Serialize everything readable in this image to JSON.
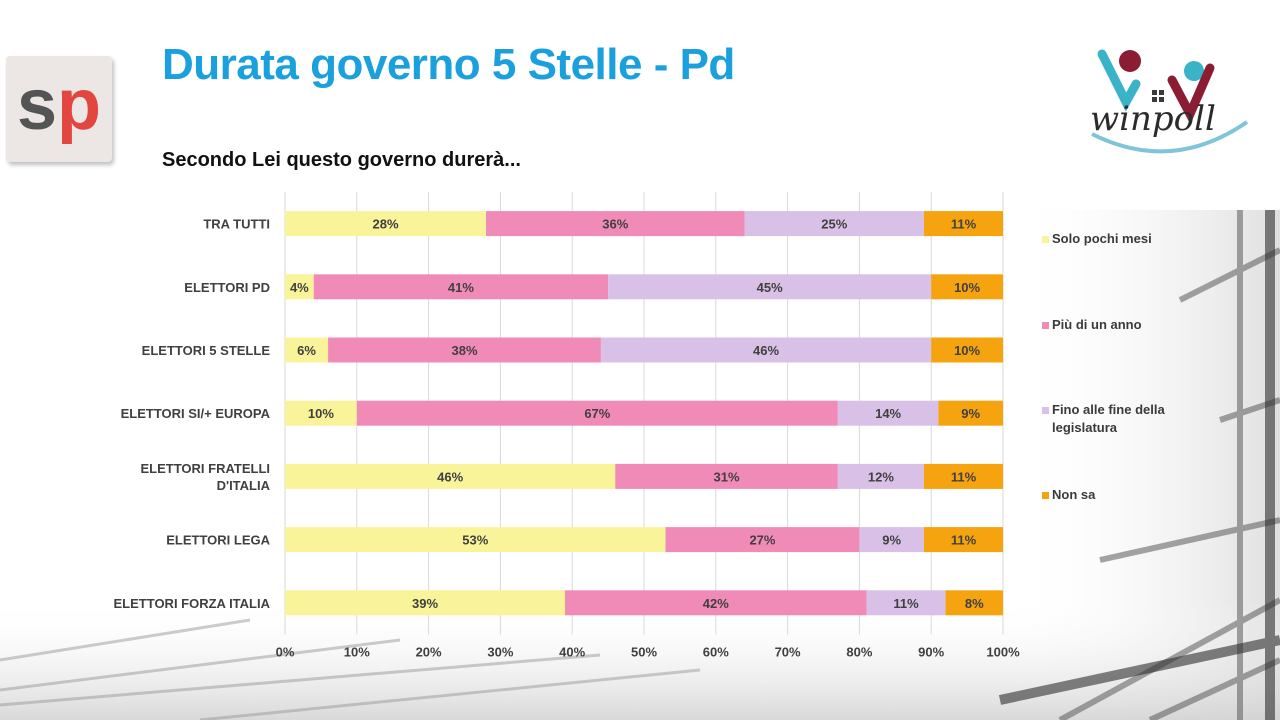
{
  "header": {
    "title": "Durata governo 5 Stelle - Pd",
    "subtitle": "Secondo Lei questo governo durerà..."
  },
  "logos": {
    "left_letters": [
      "s",
      "p"
    ],
    "right_name": "winpoll"
  },
  "colors": {
    "title": "#1aa0dd",
    "series": [
      "#f9f39a",
      "#f08bb8",
      "#d9c0e6",
      "#f5a30f"
    ],
    "logo_s": "#545454",
    "logo_p": "#e2463e"
  },
  "chart_data": {
    "type": "bar",
    "orientation": "horizontal",
    "stacked": "percent",
    "categories": [
      "TRA TUTTI",
      "ELETTORI PD",
      "ELETTORI 5 STELLE",
      "ELETTORI SI/+ EUROPA",
      "ELETTORI FRATELLI D'ITALIA",
      "ELETTORI LEGA",
      "ELETTORI FORZA ITALIA"
    ],
    "category_lines": [
      [
        "TRA TUTTI"
      ],
      [
        "ELETTORI PD"
      ],
      [
        "ELETTORI 5 STELLE"
      ],
      [
        "ELETTORI SI/+ EUROPA"
      ],
      [
        "ELETTORI FRATELLI",
        "D'ITALIA"
      ],
      [
        "ELETTORI LEGA"
      ],
      [
        "ELETTORI FORZA ITALIA"
      ]
    ],
    "series": [
      {
        "name": "Solo pochi mesi",
        "values": [
          28,
          4,
          6,
          10,
          46,
          53,
          39
        ]
      },
      {
        "name": "Più di un anno",
        "values": [
          36,
          41,
          38,
          67,
          31,
          27,
          42
        ]
      },
      {
        "name": "Fino alle fine della legislatura",
        "values": [
          25,
          45,
          46,
          14,
          12,
          9,
          11
        ]
      },
      {
        "name": "Non sa",
        "values": [
          11,
          10,
          10,
          9,
          11,
          11,
          8
        ]
      }
    ],
    "xlim": [
      0,
      100
    ],
    "x_ticks": [
      "0%",
      "10%",
      "20%",
      "30%",
      "40%",
      "50%",
      "60%",
      "70%",
      "80%",
      "90%",
      "100%"
    ],
    "grid": true,
    "legend_position": "right"
  }
}
